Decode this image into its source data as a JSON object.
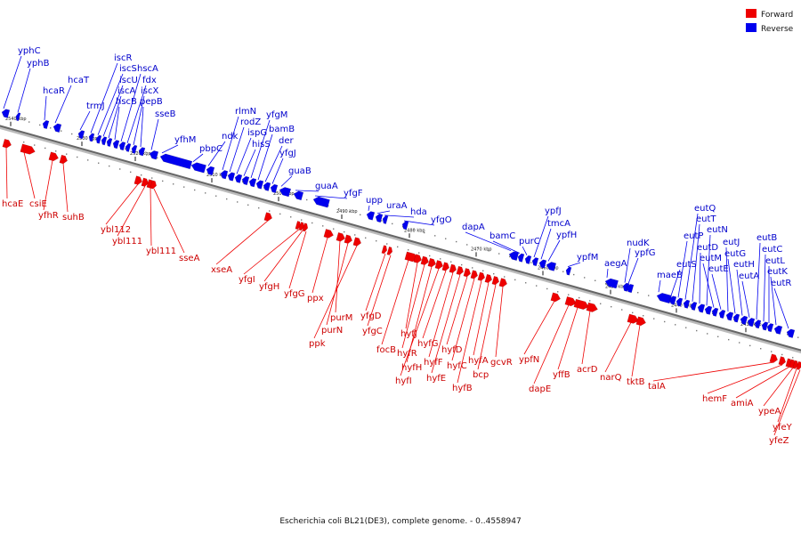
{
  "caption": "Escherichia coli BL21(DE3), complete genome. - 0..4558947",
  "legend": [
    {
      "label": "Forward",
      "color": "#ee0000"
    },
    {
      "label": "Reverse",
      "color": "#0000ee"
    }
  ],
  "colors": {
    "forward": "#ee0000",
    "reverse": "#0000ee",
    "backbone": "#666666"
  },
  "ticks": [
    "2540 kbp",
    "2530 kbp",
    "2520 kbp",
    "2510 kbp",
    "2500 kbp",
    "2490 kbp",
    "2480 kbp",
    "2470 kbp",
    "2460 kbp",
    "2450 kbp",
    "2440 kbp",
    "2430 kbp"
  ],
  "reverse_genes": [
    "yphC",
    "yphB",
    "hcaR",
    "hcaT",
    "trmJ",
    "iscR",
    "iscS",
    "iscU",
    "iscA",
    "hscB",
    "hscA",
    "fdx",
    "iscX",
    "pepB",
    "sseB",
    "yfhM",
    "pbpC",
    "ndk",
    "rlmN",
    "rodZ",
    "ispG",
    "hisS",
    "yfgM",
    "bamB",
    "der",
    "yfgJ",
    "guaB",
    "guaA",
    "yfgF",
    "upp",
    "uraA",
    "hda",
    "yfgO",
    "dapA",
    "bamC",
    "purC",
    "ypfJ",
    "tmcA",
    "ypfH",
    "ypfM",
    "aegA",
    "nudK",
    "ypfG",
    "maeB",
    "eutS",
    "eutP",
    "eutQ",
    "eutT",
    "eutD",
    "eutN",
    "eutM",
    "eutE",
    "eutJ",
    "eutG",
    "eutH",
    "eutA",
    "eutB",
    "eutC",
    "eutL",
    "eutK",
    "eutR"
  ],
  "forward_genes": [
    "hcaE",
    "csiE",
    "yfhR",
    "suhB",
    "ybl112",
    "ybl111",
    "ybl111",
    "sseA",
    "xseA",
    "yfgI",
    "yfgH",
    "yfgG",
    "ppx",
    "purM",
    "purN",
    "ppk",
    "yfgD",
    "yfgC",
    "focB",
    "hyfJ",
    "hyfR",
    "hyfH",
    "hyfI",
    "hyfG",
    "hyfF",
    "hyfE",
    "hyfD",
    "hyfC",
    "hyfB",
    "hyfA",
    "bcp",
    "gcvR",
    "ypfN",
    "dapE",
    "yffB",
    "acrD",
    "narQ",
    "tktB",
    "talA",
    "hemF",
    "amiA",
    "ypeA",
    "yfeY",
    "yfeZ"
  ]
}
